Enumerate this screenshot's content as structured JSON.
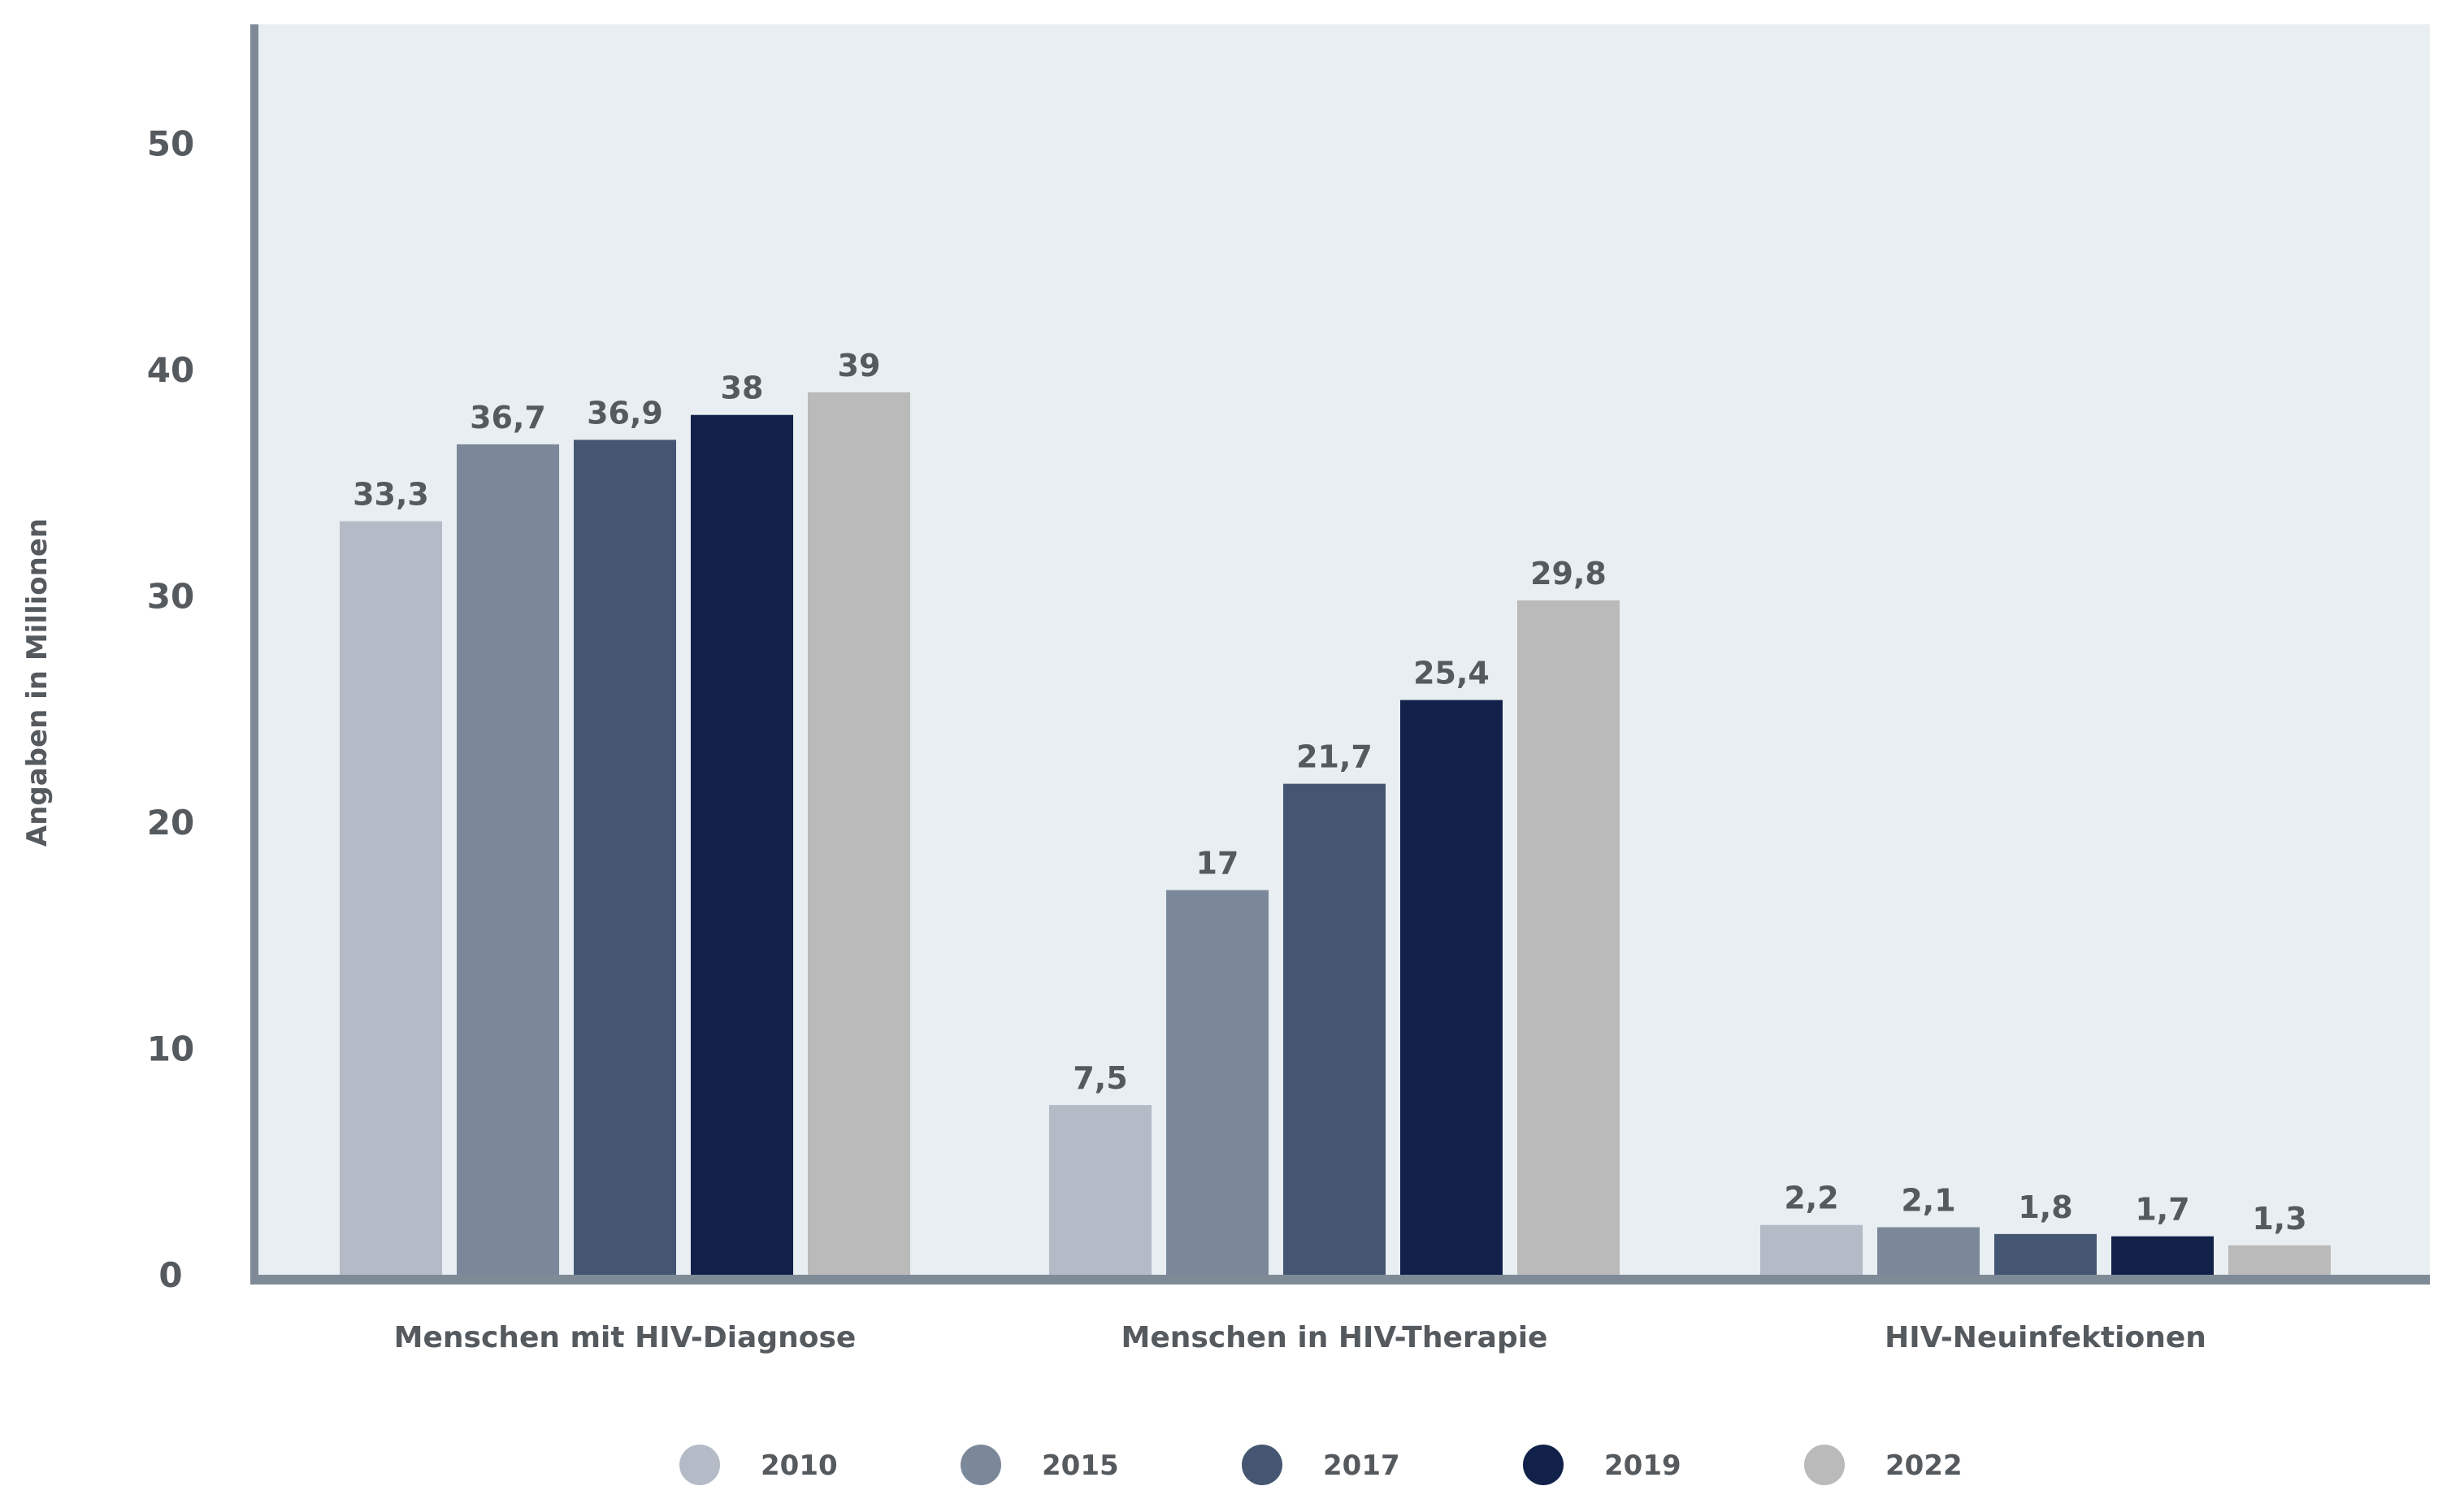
{
  "chart_data": {
    "type": "bar",
    "title": "",
    "xlabel": "",
    "ylabel": "Angaben in Millionen",
    "ylim": [
      0,
      55
    ],
    "yticks": [
      0,
      10,
      20,
      30,
      40,
      50
    ],
    "grid": false,
    "legend_position": "bottom",
    "categories": [
      "Menschen mit HIV-Diagnose",
      "Menschen in HIV-Therapie",
      "HIV-Neuinfektionen"
    ],
    "series": [
      {
        "name": "2010",
        "color": "#b4bac6",
        "values": [
          33.3,
          7.5,
          2.2
        ],
        "labels": [
          "33,3",
          "7,5",
          "2,2"
        ]
      },
      {
        "name": "2015",
        "color": "#7b889a",
        "values": [
          36.7,
          17,
          2.1
        ],
        "labels": [
          "36,7",
          "17",
          "2,1"
        ]
      },
      {
        "name": "2017",
        "color": "#455672",
        "values": [
          36.9,
          21.7,
          1.8
        ],
        "labels": [
          "36,9",
          "21,7",
          "1,8"
        ]
      },
      {
        "name": "2019",
        "color": "#12214a",
        "values": [
          38,
          25.4,
          1.7
        ],
        "labels": [
          "38",
          "25,4",
          "1,7"
        ]
      },
      {
        "name": "2022",
        "color": "#bababa",
        "values": [
          39,
          29.8,
          1.3
        ],
        "labels": [
          "39",
          "29,8",
          "1,3"
        ]
      }
    ],
    "colors": {
      "plot_background": "#e8eef1",
      "axis": "#7e8b97",
      "text": "#555a5f"
    }
  }
}
